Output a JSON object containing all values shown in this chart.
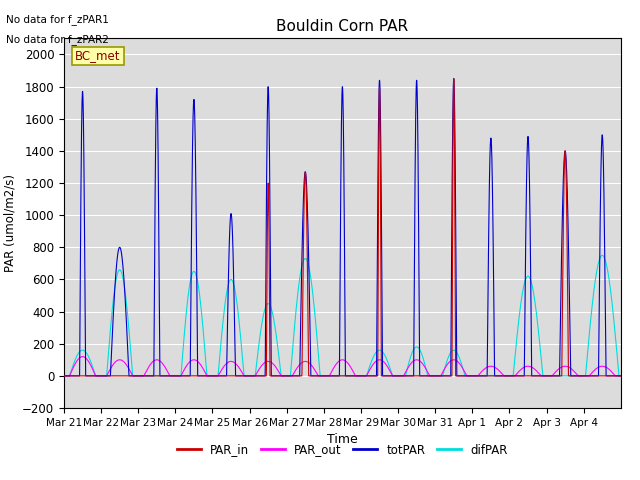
{
  "title": "Bouldin Corn PAR",
  "ylabel": "PAR (umol/m2/s)",
  "xlabel": "Time",
  "no_data_text": [
    "No data for f_zPAR1",
    "No data for f_zPAR2"
  ],
  "legend_label_text": "BC_met",
  "ylim": [
    -200,
    2100
  ],
  "colors": {
    "PAR_in": "#cc0000",
    "PAR_out": "#ff00ff",
    "totPAR": "#0000cc",
    "difPAR": "#00dddd"
  },
  "background_color": "#dcdcdc",
  "grid_color": "#ffffff",
  "n_days": 15,
  "tot_peaks": [
    1770,
    800,
    1790,
    1720,
    1010,
    1800,
    1270,
    1800,
    1840,
    1840,
    1850,
    1480,
    1490,
    1400,
    1500
  ],
  "tot_widths": [
    0.08,
    0.25,
    0.08,
    0.1,
    0.12,
    0.08,
    0.15,
    0.08,
    0.08,
    0.08,
    0.08,
    0.1,
    0.1,
    0.15,
    0.1
  ],
  "dif_peaks": [
    160,
    660,
    0,
    650,
    600,
    450,
    730,
    0,
    160,
    180,
    160,
    0,
    620,
    0,
    750
  ],
  "dif_widths": [
    0.35,
    0.35,
    0.0,
    0.35,
    0.35,
    0.35,
    0.4,
    0.0,
    0.35,
    0.3,
    0.3,
    0.0,
    0.4,
    0.0,
    0.45
  ],
  "par_in_peaks": [
    0,
    0,
    0,
    0,
    0,
    1200,
    1270,
    0,
    1800,
    0,
    1850,
    0,
    0,
    1400,
    0
  ],
  "par_out_peaks": [
    120,
    100,
    100,
    100,
    90,
    90,
    90,
    100,
    100,
    100,
    100,
    60,
    60,
    60,
    60
  ],
  "tick_labels": [
    "Mar 21",
    "Mar 22",
    "Mar 23",
    "Mar 24",
    "Mar 25",
    "Mar 26",
    "Mar 27",
    "Mar 28",
    "Mar 29",
    "Mar 30",
    "Mar 31",
    "Apr 1",
    "Apr 2",
    "Apr 3",
    "Apr 4"
  ]
}
